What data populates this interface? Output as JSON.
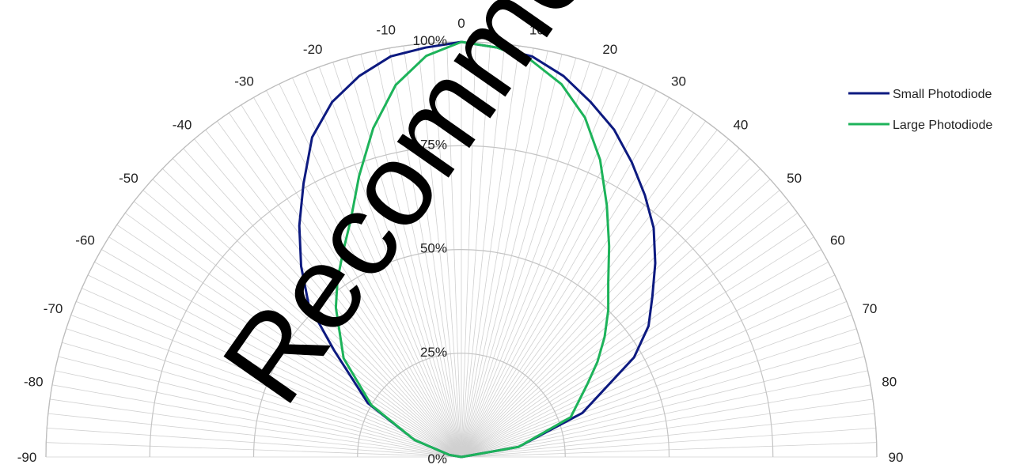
{
  "chart_data": {
    "type": "line",
    "subtype": "polar-half",
    "title": "",
    "angles_deg": [
      -90,
      -80,
      -70,
      -60,
      -50,
      -40,
      -30,
      -20,
      -10,
      0,
      10,
      20,
      30,
      40,
      50,
      60,
      70,
      80,
      90
    ],
    "angle_tick_labels": [
      "-90",
      "-80",
      "-70",
      "-60",
      "-50",
      "-40",
      "-30",
      "-20",
      "-10",
      "0",
      "10",
      "20",
      "30",
      "40",
      "50",
      "60",
      "70",
      "80",
      "90"
    ],
    "angle_range": [
      -90,
      90
    ],
    "radial_range": [
      0,
      100
    ],
    "radial_ticks": [
      0,
      25,
      50,
      75,
      100
    ],
    "radial_tick_labels": [
      "0%",
      "25%",
      "50%",
      "75%",
      "100%"
    ],
    "fine_grid_step_deg": 2,
    "grid": true,
    "legend_position": "top-right",
    "series": [
      {
        "name": "Small Photodiode",
        "color": "#0d1a80",
        "angles_deg": [
          -90,
          -80,
          -70,
          -60,
          -50,
          -45,
          -40,
          -35,
          -30,
          -25,
          -20,
          -15,
          -10,
          -5,
          0,
          5,
          10,
          15,
          20,
          25,
          30,
          35,
          40,
          45,
          50,
          55,
          60,
          70,
          80,
          90
        ],
        "values": [
          0,
          3,
          12,
          26,
          40,
          52,
          60,
          68,
          76,
          85,
          91,
          95,
          98,
          99,
          100,
          99,
          98,
          95,
          91,
          87,
          82,
          77,
          72,
          66,
          60,
          55,
          48,
          31,
          14,
          0
        ]
      },
      {
        "name": "Large Photodiode",
        "color": "#1db35a",
        "angles_deg": [
          -90,
          -80,
          -70,
          -60,
          -50,
          -40,
          -35,
          -30,
          -25,
          -20,
          -15,
          -10,
          -5,
          0,
          5,
          10,
          15,
          20,
          25,
          30,
          35,
          40,
          45,
          50,
          55,
          60,
          70,
          80,
          90
        ],
        "values": [
          0,
          3,
          12,
          25,
          37,
          47,
          52,
          57,
          63,
          72,
          82,
          91,
          97,
          100,
          99,
          97,
          93,
          87,
          79,
          70,
          62,
          55,
          50,
          45,
          40,
          35,
          28,
          14,
          0
        ]
      }
    ]
  },
  "watermark": {
    "text": "Recommended for",
    "color": "#000000"
  }
}
